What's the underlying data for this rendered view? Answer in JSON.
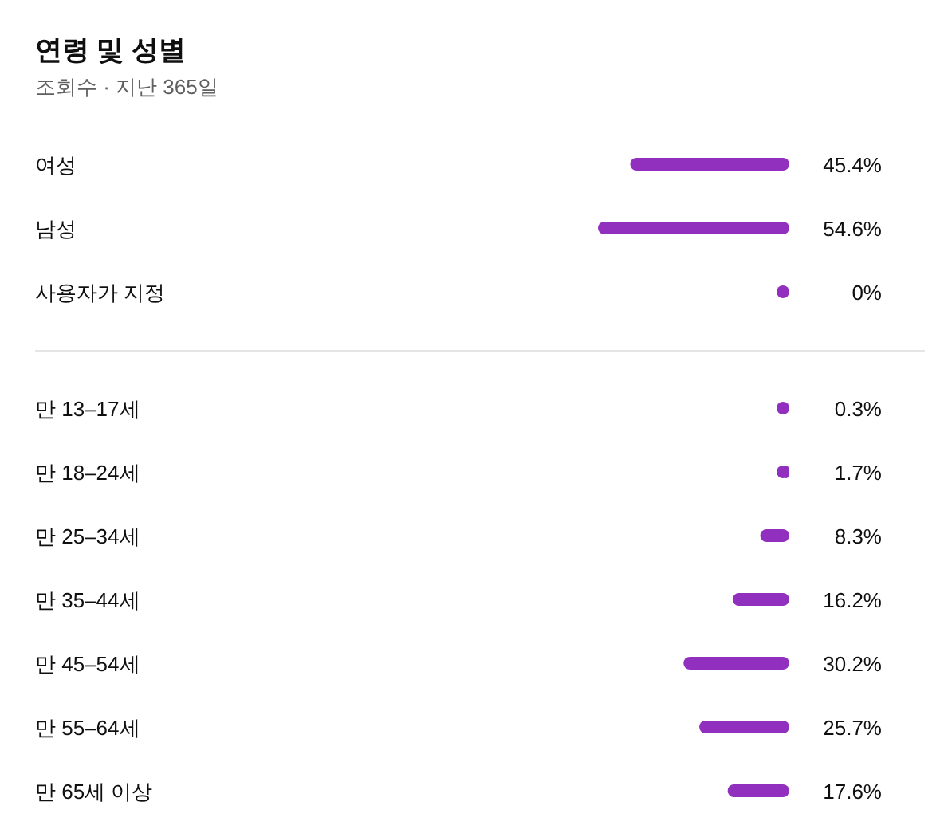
{
  "chart_data": [
    {
      "type": "bar",
      "orientation": "horizontal",
      "title": "연령 및 성별",
      "subtitle": "조회수 · 지난 365일",
      "categories": [
        "여성",
        "남성",
        "사용자가 지정"
      ],
      "values": [
        45.4,
        54.6,
        0
      ],
      "value_labels": [
        "45.4%",
        "54.6%",
        "0%"
      ],
      "color": "#9130be"
    },
    {
      "type": "bar",
      "orientation": "horizontal",
      "categories": [
        "만 13–17세",
        "만 18–24세",
        "만 25–34세",
        "만 35–44세",
        "만 45–54세",
        "만 55–64세",
        "만 65세 이상"
      ],
      "values": [
        0.3,
        1.7,
        8.3,
        16.2,
        30.2,
        25.7,
        17.6
      ],
      "value_labels": [
        "0.3%",
        "1.7%",
        "8.3%",
        "16.2%",
        "30.2%",
        "25.7%",
        "17.6%"
      ],
      "color": "#9130be"
    }
  ]
}
